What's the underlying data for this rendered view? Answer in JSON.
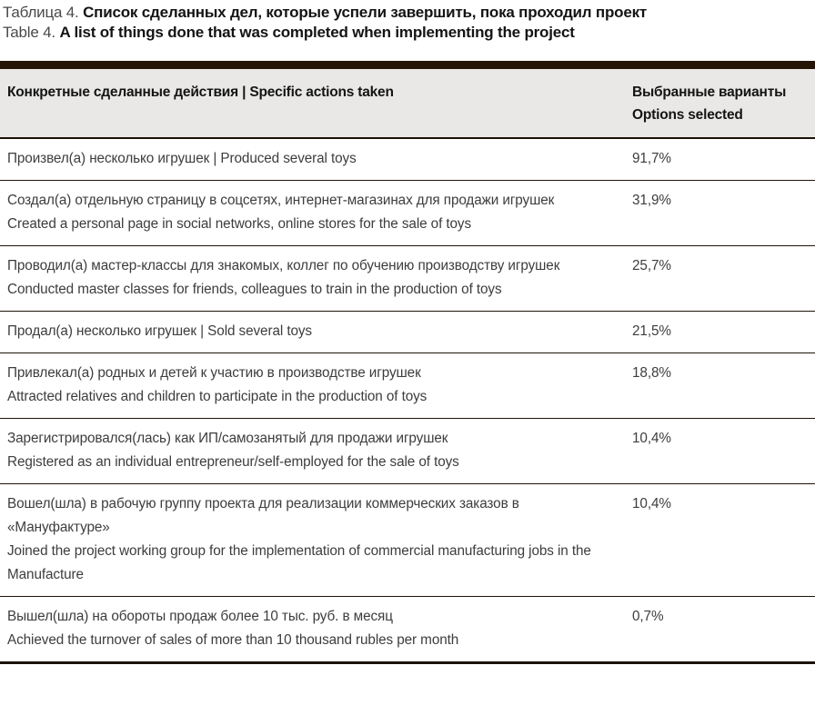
{
  "caption": {
    "ru_prefix": "Таблица 4. ",
    "ru_text": "Список сделанных дел, которые успели завершить, пока проходил проект",
    "en_prefix": "Table 4. ",
    "en_text": "A list of things done that was completed when implementing the project"
  },
  "table": {
    "header": {
      "actions": "Конкретные сделанные действия  |  Specific actions taken",
      "options_line1": "Выбранные варианты",
      "options_line2": "Options selected"
    },
    "rows": [
      {
        "lines": [
          "Произвел(а) несколько игрушек  |  Produced several toys"
        ],
        "value": "91,7%"
      },
      {
        "lines": [
          "Создал(а) отдельную страницу в соцсетях, интернет-магазинах для продажи игрушек",
          "Created a personal page in social networks, online stores for the sale of toys"
        ],
        "value": "31,9%"
      },
      {
        "lines": [
          "Проводил(а) мастер-классы для знакомых, коллег по обучению производству игрушек",
          "Conducted master classes for friends, colleagues to train in the production of toys"
        ],
        "value": "25,7%"
      },
      {
        "lines": [
          "Продал(а) несколько игрушек  |  Sold several toys"
        ],
        "value": "21,5%"
      },
      {
        "lines": [
          "Привлекал(а) родных и детей к участию в производстве игрушек",
          "Attracted relatives and children to participate in the production of toys"
        ],
        "value": "18,8%"
      },
      {
        "lines": [
          "Зарегистрировался(лась) как ИП/самозанятый для продажи игрушек",
          "Registered as an individual entrepreneur/self-employed for the sale of toys"
        ],
        "value": "10,4%"
      },
      {
        "lines": [
          "Вошел(шла) в рабочую группу проекта для реализации коммерческих заказов в «Мануфактуре»",
          "Joined the project working group for the implementation of commercial manufacturing jobs in the Manufacture"
        ],
        "value": "10,4%"
      },
      {
        "lines": [
          "Вышел(шла) на обороты продаж более 10 тыс. руб. в месяц",
          "Achieved the turnover of sales of more than 10 thousand rubles per month"
        ],
        "value": "0,7%"
      }
    ]
  },
  "colors": {
    "top_bar": "#241505",
    "header_bg": "#e9e8e6",
    "row_border": "#1c140c",
    "body_text": "#3d3d3d",
    "heading_text": "#141414"
  }
}
